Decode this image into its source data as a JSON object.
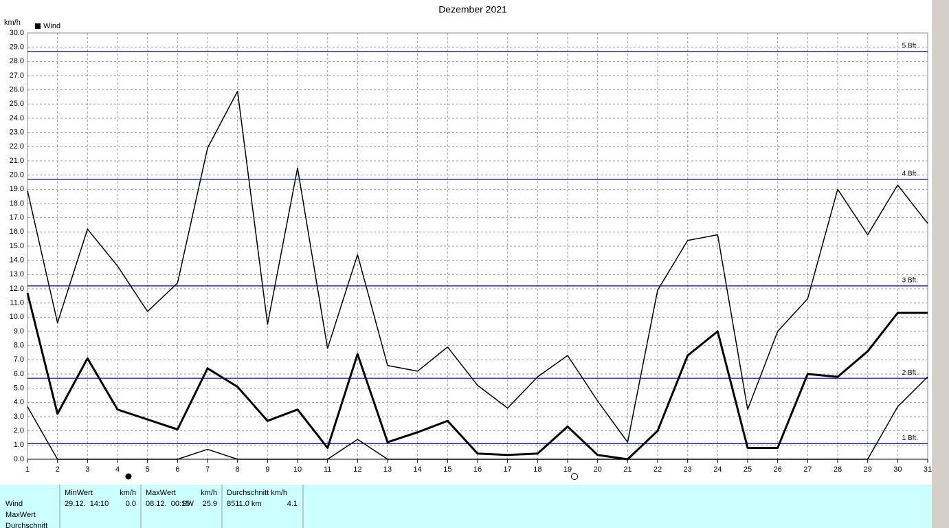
{
  "chart_data": {
    "type": "line",
    "title": "Dezember 2021",
    "y_label": "km/h",
    "legend_label": "Wind",
    "legend_color": "#000000",
    "x": [
      1,
      2,
      3,
      4,
      5,
      6,
      7,
      8,
      9,
      10,
      11,
      12,
      13,
      14,
      15,
      16,
      17,
      18,
      19,
      20,
      21,
      22,
      23,
      24,
      25,
      26,
      27,
      28,
      29,
      30,
      31
    ],
    "xlim": [
      1,
      31
    ],
    "xticks": [
      1,
      2,
      3,
      4,
      5,
      6,
      7,
      8,
      9,
      10,
      11,
      12,
      13,
      14,
      15,
      16,
      17,
      18,
      19,
      20,
      21,
      22,
      23,
      24,
      25,
      26,
      27,
      28,
      29,
      30,
      31
    ],
    "ylim": [
      0,
      30
    ],
    "yticks": [
      {
        "value": 0,
        "label": "0.0"
      },
      {
        "value": 1,
        "label": "1.0"
      },
      {
        "value": 2,
        "label": "2.0"
      },
      {
        "value": 3,
        "label": "3.0"
      },
      {
        "value": 4,
        "label": "4.0"
      },
      {
        "value": 5,
        "label": "5.0"
      },
      {
        "value": 6,
        "label": "6.0"
      },
      {
        "value": 7,
        "label": "7.0"
      },
      {
        "value": 8,
        "label": "8.0"
      },
      {
        "value": 9,
        "label": "9.0"
      },
      {
        "value": 10,
        "label": "10.0"
      },
      {
        "value": 11,
        "label": "11.0"
      },
      {
        "value": 12,
        "label": "12.0"
      },
      {
        "value": 13,
        "label": "13.0"
      },
      {
        "value": 14,
        "label": "14.0"
      },
      {
        "value": 15,
        "label": "15.0"
      },
      {
        "value": 16,
        "label": "16.0"
      },
      {
        "value": 17,
        "label": "17.0"
      },
      {
        "value": 18,
        "label": "18.0"
      },
      {
        "value": 19,
        "label": "19.0"
      },
      {
        "value": 20,
        "label": "20.0"
      },
      {
        "value": 21,
        "label": "21.0"
      },
      {
        "value": 22,
        "label": "22.0"
      },
      {
        "value": 23,
        "label": "23.0"
      },
      {
        "value": 24,
        "label": "24.0"
      },
      {
        "value": 25,
        "label": "25.0"
      },
      {
        "value": 26,
        "label": "26.0"
      },
      {
        "value": 27,
        "label": "27.0"
      },
      {
        "value": 28,
        "label": "28.0"
      },
      {
        "value": 29,
        "label": "29.0"
      },
      {
        "value": 30,
        "label": "30.0"
      }
    ],
    "grid": true,
    "series": [
      {
        "color": "#000000",
        "line_width": 1.5,
        "values": [
          18.9,
          9.6,
          16.2,
          13.6,
          10.4,
          12.4,
          21.9,
          25.9,
          9.5,
          20.5,
          7.8,
          14.4,
          6.6,
          6.2,
          7.9,
          5.2,
          3.6,
          5.8,
          7.3,
          4.1,
          1.2,
          11.9,
          15.4,
          15.8,
          3.5,
          9.0,
          11.3,
          19.0,
          15.8,
          19.3,
          16.6
        ]
      },
      {
        "color": "#000000",
        "line_width": 3,
        "values": [
          11.7,
          3.2,
          7.1,
          3.5,
          2.8,
          2.1,
          6.4,
          5.1,
          2.7,
          3.5,
          0.8,
          7.4,
          1.2,
          1.9,
          2.7,
          0.4,
          0.3,
          0.4,
          2.3,
          0.3,
          0.0,
          2.0,
          7.3,
          9.0,
          0.8,
          0.8,
          6.0,
          5.8,
          7.6,
          10.3,
          10.3
        ]
      },
      {
        "color": "#000000",
        "line_width": 1.5,
        "values": [
          3.7,
          0.0,
          0.0,
          0.0,
          0.0,
          0.0,
          0.7,
          0.0,
          0.0,
          0.0,
          0.0,
          1.4,
          0.0,
          0.0,
          0.0,
          0.0,
          0.0,
          0.0,
          0.0,
          0.0,
          0.0,
          0.0,
          0.0,
          0.0,
          0.0,
          0.0,
          0.0,
          0.0,
          0.0,
          3.7,
          5.8
        ]
      }
    ],
    "reference_color": "#0000a8",
    "reference_lines": [
      {
        "value": 1.1,
        "label": "1 Bft."
      },
      {
        "value": 5.7,
        "label": "2 Bft."
      },
      {
        "value": 12.2,
        "label": "3 Bft."
      },
      {
        "value": 19.7,
        "label": "4 Bft."
      },
      {
        "value": 28.7,
        "label": "5 Bft."
      }
    ]
  },
  "summary": {
    "row_labels": [
      "Wind",
      "MaxWert",
      "Durchschnitt"
    ],
    "min_header": "MinWert",
    "min_unit": "km/h",
    "min_time": "29.12.  14:10",
    "min_value": "0.0",
    "max_header": "MaxWert",
    "max_unit": "km/h",
    "max_time": "08.12.  00:15",
    "max_dir": "SW",
    "max_value": "25.9",
    "avg_header": "Durchschnitt km/h",
    "avg_distance": "8511.0 km",
    "avg_value": "4.1"
  }
}
